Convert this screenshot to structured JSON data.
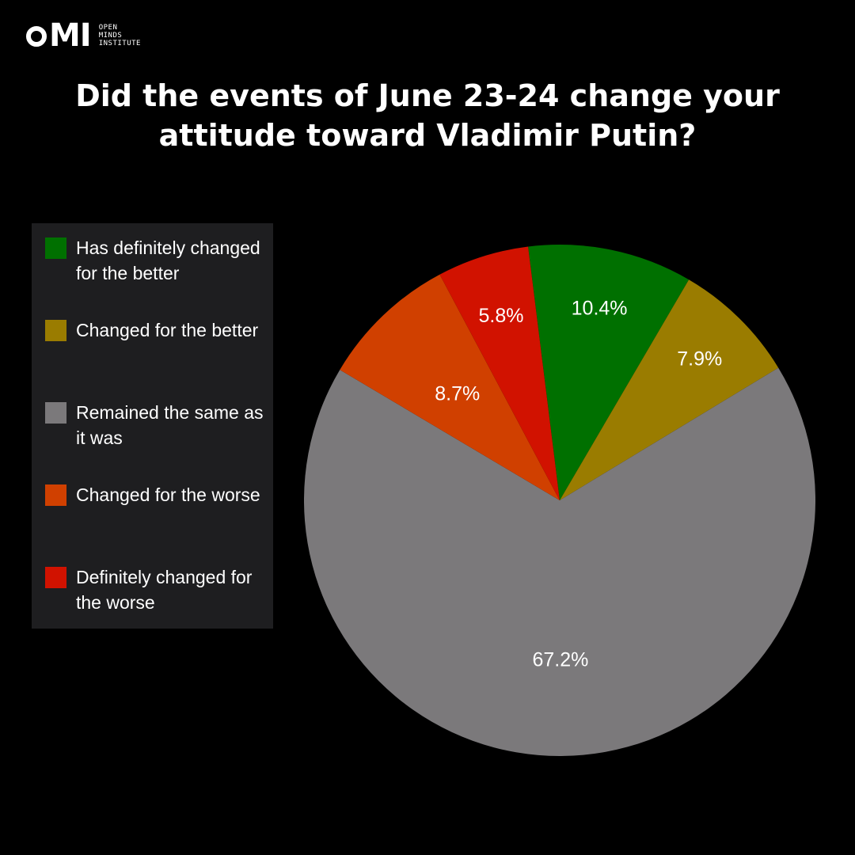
{
  "logo": {
    "mark": "MI",
    "lines": [
      "OPEN",
      "MINDS",
      "INSTITUTE"
    ]
  },
  "chart_data": {
    "type": "pie",
    "title": "Did the events of June 23-24 change your attitude toward Vladimir Putin?",
    "legend_position": "left",
    "slices": [
      {
        "name": "Has definitely changed for the better",
        "value": 10.4,
        "label": "10.4%",
        "color": "#007000"
      },
      {
        "name": "Changed for the better",
        "value": 7.9,
        "label": "7.9%",
        "color": "#9a7c00"
      },
      {
        "name": "Remained the same as it was",
        "value": 67.2,
        "label": "67.2%",
        "color": "#7b797b"
      },
      {
        "name": "Changed for the worse",
        "value": 8.7,
        "label": "8.7%",
        "color": "#d04000"
      },
      {
        "name": "Definitely changed for the worse",
        "value": 5.8,
        "label": "5.8%",
        "color": "#d11200"
      }
    ]
  }
}
